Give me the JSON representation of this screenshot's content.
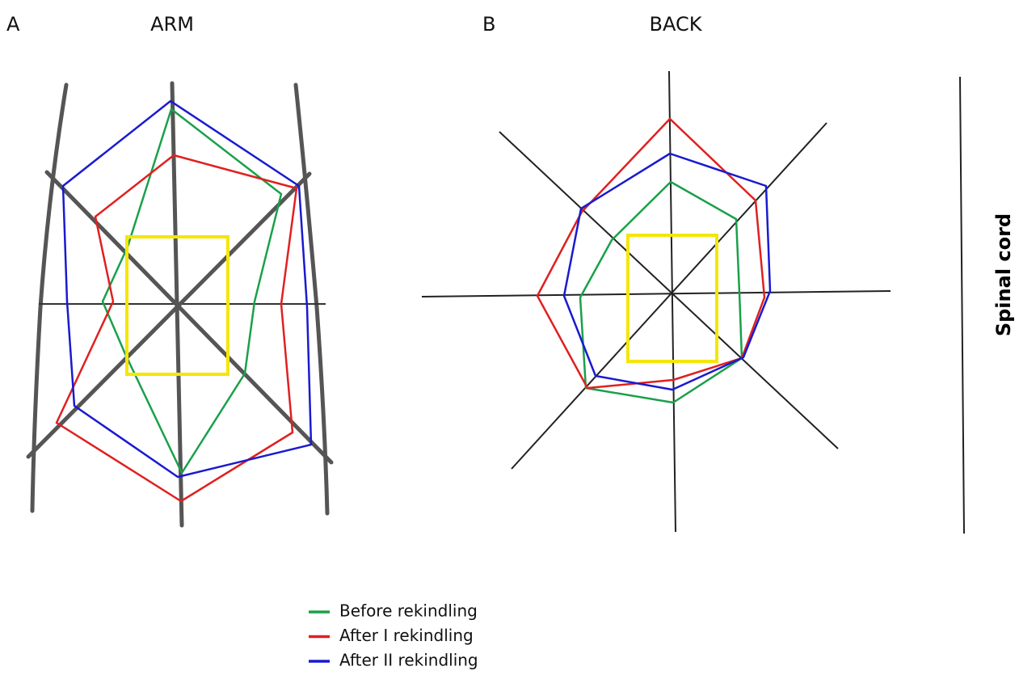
{
  "panels": [
    {
      "letter": "A",
      "title": "ARM"
    },
    {
      "letter": "B",
      "title": "BACK"
    }
  ],
  "side_label": "Spinal cord",
  "legend": [
    {
      "name": "Before rekindling",
      "color": "#1aa04a"
    },
    {
      "name": "After I rekindling",
      "color": "#e02020"
    },
    {
      "name": "After II rekindling",
      "color": "#1a1ad0"
    }
  ]
}
